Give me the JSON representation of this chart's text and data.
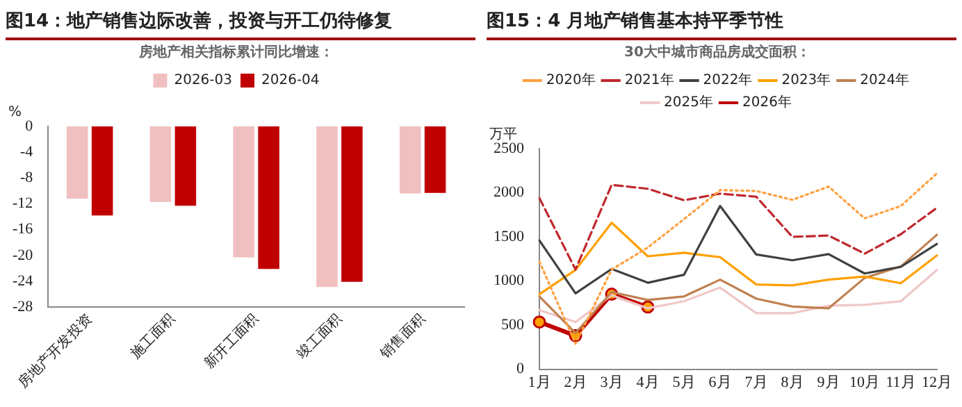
{
  "chart_data": [
    {
      "type": "bar",
      "title": "图14：地产销售边际改善，投资与开工仍待修复",
      "ylabel": "%",
      "legend_title": "房地产相关指标累计同比增速：",
      "categories": [
        "房地产开发投资",
        "施工面积",
        "新开工面积",
        "竣工面积",
        "销售面积"
      ],
      "series": [
        {
          "name": "2026-03",
          "color": "#f0c0c0",
          "values": [
            -11.2,
            -11.7,
            -20.3,
            -24.9,
            -10.4
          ]
        },
        {
          "name": "2026-04",
          "color": "#c00000",
          "values": [
            -13.8,
            -12.3,
            -22.1,
            -24.1,
            -10.3
          ]
        }
      ],
      "ylim": [
        -28,
        0
      ],
      "yticks": [
        0,
        -4,
        -8,
        -12,
        -16,
        -20,
        -24,
        -28
      ],
      "grid": false,
      "legend": "top"
    },
    {
      "type": "line",
      "title": "图15：4 月地产销售基本持平季节性",
      "ylabel": "万平",
      "legend_title": "30大中城市商品房成交面积：",
      "categories": [
        "1月",
        "2月",
        "3月",
        "4月",
        "5月",
        "6月",
        "7月",
        "8月",
        "9月",
        "10月",
        "11月",
        "12月"
      ],
      "series": [
        {
          "name": "2020年",
          "color": "#ffa040",
          "line_style": "dotted",
          "marker": "none",
          "values": [
            1220,
            290,
            1130,
            1380,
            1700,
            2030,
            2020,
            1920,
            2070,
            1710,
            1850,
            2220
          ]
        },
        {
          "name": "2021年",
          "color": "#c0282d",
          "line_style": "dashed",
          "marker": "none",
          "values": [
            1940,
            1130,
            2090,
            2045,
            1915,
            1990,
            1955,
            1500,
            1515,
            1310,
            1530,
            1830
          ]
        },
        {
          "name": "2022年",
          "color": "#404040",
          "line_style": "solid",
          "marker": "none",
          "values": [
            1460,
            860,
            1136,
            980,
            1070,
            1850,
            1300,
            1235,
            1305,
            1085,
            1160,
            1420
          ]
        },
        {
          "name": "2023年",
          "color": "#ffa000",
          "line_style": "solid",
          "marker": "none",
          "values": [
            850,
            1126,
            1660,
            1280,
            1320,
            1270,
            960,
            950,
            1015,
            1050,
            975,
            1290
          ]
        },
        {
          "name": "2024年",
          "color": "#c08050",
          "line_style": "solid",
          "marker": "none",
          "values": [
            825,
            410,
            875,
            785,
            825,
            1015,
            800,
            710,
            690,
            1035,
            1165,
            1525
          ]
        },
        {
          "name": "2025年",
          "color": "#f0c8c8",
          "line_style": "solid",
          "marker": "none",
          "values": [
            670,
            535,
            840,
            690,
            770,
            925,
            635,
            635,
            720,
            730,
            770,
            1125
          ]
        },
        {
          "name": "2026年",
          "color": "#c00000",
          "line_style": "solid",
          "marker": "circle",
          "values": [
            535,
            380,
            850,
            705,
            null,
            null,
            null,
            null,
            null,
            null,
            null,
            null
          ]
        }
      ],
      "ylim": [
        0,
        2500
      ],
      "yticks": [
        0,
        500,
        1000,
        1500,
        2000,
        2500
      ],
      "grid": false,
      "legend": "top"
    }
  ]
}
